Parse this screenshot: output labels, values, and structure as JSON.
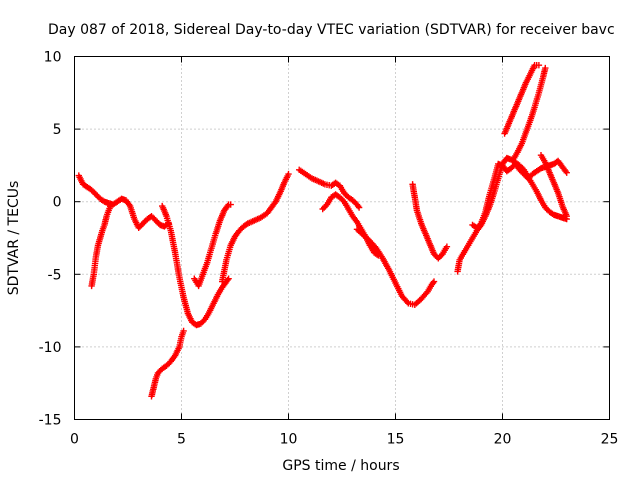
{
  "chart_data": {
    "type": "scatter",
    "title": "Day 087 of 2018, Sidereal Day-to-day VTEC variation (SDTVAR) for receiver bavc",
    "xlabel": "GPS time / hours",
    "ylabel": "SDTVAR / TECUs",
    "xlim": [
      0,
      25
    ],
    "ylim": [
      -15,
      10
    ],
    "x_ticks": [
      0,
      5,
      10,
      15,
      20,
      25
    ],
    "y_ticks": [
      -15,
      -10,
      -5,
      0,
      5,
      10
    ],
    "x_tick_labels": [
      "0",
      "5",
      "10",
      "15",
      "20",
      "25"
    ],
    "y_tick_labels": [
      "-15",
      "-10",
      "-5",
      "0",
      "5",
      "10"
    ],
    "grid": true,
    "marker": "+",
    "color": "#ff0000",
    "series": [
      {
        "name": "seg1",
        "points": [
          [
            0.2,
            1.8
          ],
          [
            0.4,
            1.2
          ],
          [
            0.6,
            1.0
          ],
          [
            0.8,
            0.8
          ],
          [
            1.0,
            0.5
          ],
          [
            1.2,
            0.2
          ],
          [
            1.4,
            0.0
          ],
          [
            1.6,
            -0.1
          ],
          [
            1.8,
            -0.2
          ],
          [
            2.0,
            0.0
          ],
          [
            2.2,
            0.2
          ],
          [
            2.4,
            0.1
          ],
          [
            2.6,
            -0.3
          ],
          [
            2.8,
            -1.2
          ],
          [
            3.0,
            -1.8
          ],
          [
            3.2,
            -1.5
          ],
          [
            3.4,
            -1.2
          ],
          [
            3.6,
            -1.0
          ],
          [
            3.8,
            -1.3
          ],
          [
            4.0,
            -1.6
          ],
          [
            4.2,
            -1.7
          ],
          [
            4.4,
            -1.5
          ]
        ]
      },
      {
        "name": "seg2",
        "points": [
          [
            0.8,
            -5.8
          ],
          [
            0.9,
            -5.0
          ],
          [
            1.0,
            -3.8
          ],
          [
            1.1,
            -3.0
          ],
          [
            1.2,
            -2.5
          ],
          [
            1.3,
            -2.0
          ],
          [
            1.4,
            -1.6
          ],
          [
            1.5,
            -1.0
          ],
          [
            1.6,
            -0.6
          ],
          [
            1.7,
            -0.2
          ]
        ]
      },
      {
        "name": "seg3",
        "points": [
          [
            4.1,
            -0.3
          ],
          [
            4.3,
            -1.0
          ],
          [
            4.5,
            -2.0
          ],
          [
            4.7,
            -3.5
          ],
          [
            4.9,
            -5.2
          ],
          [
            5.1,
            -6.6
          ],
          [
            5.3,
            -7.7
          ],
          [
            5.5,
            -8.3
          ],
          [
            5.7,
            -8.5
          ],
          [
            5.9,
            -8.4
          ],
          [
            6.1,
            -8.1
          ],
          [
            6.3,
            -7.6
          ],
          [
            6.5,
            -7.0
          ],
          [
            6.7,
            -6.4
          ],
          [
            6.9,
            -5.9
          ],
          [
            7.1,
            -5.5
          ],
          [
            7.2,
            -5.3
          ]
        ]
      },
      {
        "name": "seg4",
        "points": [
          [
            5.6,
            -5.3
          ],
          [
            5.8,
            -5.8
          ],
          [
            6.0,
            -5.0
          ],
          [
            6.2,
            -4.2
          ],
          [
            6.4,
            -3.2
          ],
          [
            6.6,
            -2.2
          ],
          [
            6.8,
            -1.3
          ],
          [
            7.0,
            -0.6
          ],
          [
            7.2,
            -0.2
          ],
          [
            7.3,
            -0.2
          ]
        ]
      },
      {
        "name": "seg5",
        "points": [
          [
            3.6,
            -13.4
          ],
          [
            3.7,
            -12.8
          ],
          [
            3.8,
            -12.2
          ],
          [
            3.9,
            -11.8
          ],
          [
            4.1,
            -11.5
          ],
          [
            4.3,
            -11.3
          ],
          [
            4.5,
            -11.0
          ],
          [
            4.7,
            -10.6
          ],
          [
            4.9,
            -10.0
          ],
          [
            5.0,
            -9.3
          ],
          [
            5.1,
            -8.9
          ]
        ]
      },
      {
        "name": "seg6",
        "points": [
          [
            6.9,
            -5.5
          ],
          [
            7.1,
            -4.0
          ],
          [
            7.3,
            -3.0
          ],
          [
            7.5,
            -2.4
          ],
          [
            7.7,
            -2.0
          ],
          [
            7.9,
            -1.7
          ],
          [
            8.1,
            -1.5
          ],
          [
            8.4,
            -1.3
          ],
          [
            8.7,
            -1.1
          ],
          [
            9.0,
            -0.8
          ],
          [
            9.2,
            -0.4
          ],
          [
            9.4,
            0.0
          ],
          [
            9.6,
            0.6
          ],
          [
            9.8,
            1.3
          ],
          [
            10.0,
            1.9
          ]
        ]
      },
      {
        "name": "seg7",
        "points": [
          [
            10.5,
            2.2
          ],
          [
            10.8,
            1.9
          ],
          [
            11.1,
            1.6
          ],
          [
            11.4,
            1.4
          ],
          [
            11.7,
            1.2
          ],
          [
            12.0,
            1.1
          ],
          [
            12.2,
            1.3
          ],
          [
            12.4,
            1.1
          ],
          [
            12.6,
            0.6
          ],
          [
            12.8,
            0.3
          ],
          [
            13.0,
            0.1
          ],
          [
            13.2,
            -0.2
          ],
          [
            13.3,
            -0.4
          ]
        ]
      },
      {
        "name": "seg8",
        "points": [
          [
            11.6,
            -0.5
          ],
          [
            11.8,
            -0.2
          ],
          [
            12.0,
            0.3
          ],
          [
            12.2,
            0.5
          ],
          [
            12.4,
            0.3
          ],
          [
            12.6,
            0.0
          ],
          [
            12.8,
            -0.5
          ],
          [
            13.0,
            -1.0
          ],
          [
            13.2,
            -1.4
          ],
          [
            13.4,
            -1.9
          ],
          [
            13.6,
            -2.4
          ],
          [
            13.8,
            -3.0
          ],
          [
            14.0,
            -3.5
          ],
          [
            14.2,
            -3.7
          ]
        ]
      },
      {
        "name": "seg9",
        "points": [
          [
            13.2,
            -1.9
          ],
          [
            13.5,
            -2.3
          ],
          [
            13.8,
            -2.7
          ],
          [
            14.1,
            -3.2
          ],
          [
            14.4,
            -3.9
          ],
          [
            14.7,
            -4.7
          ],
          [
            15.0,
            -5.6
          ],
          [
            15.3,
            -6.5
          ],
          [
            15.6,
            -7.0
          ],
          [
            15.9,
            -7.1
          ],
          [
            16.2,
            -6.7
          ],
          [
            16.5,
            -6.2
          ],
          [
            16.7,
            -5.7
          ],
          [
            16.8,
            -5.5
          ]
        ]
      },
      {
        "name": "seg10",
        "points": [
          [
            15.8,
            1.2
          ],
          [
            15.9,
            0.3
          ],
          [
            16.0,
            -0.6
          ],
          [
            16.2,
            -1.5
          ],
          [
            16.4,
            -2.2
          ],
          [
            16.6,
            -2.9
          ],
          [
            16.8,
            -3.6
          ],
          [
            17.0,
            -3.9
          ],
          [
            17.2,
            -3.6
          ],
          [
            17.4,
            -3.1
          ]
        ]
      },
      {
        "name": "seg11",
        "points": [
          [
            17.9,
            -4.8
          ],
          [
            18.0,
            -4.0
          ],
          [
            18.2,
            -3.5
          ],
          [
            18.4,
            -3.0
          ],
          [
            18.6,
            -2.5
          ],
          [
            18.8,
            -2.0
          ],
          [
            19.0,
            -1.6
          ],
          [
            19.2,
            -1.0
          ],
          [
            19.4,
            -0.3
          ],
          [
            19.6,
            0.6
          ],
          [
            19.8,
            1.6
          ],
          [
            20.0,
            2.6
          ],
          [
            20.2,
            3.0
          ],
          [
            20.4,
            2.9
          ],
          [
            20.6,
            2.7
          ],
          [
            20.8,
            2.5
          ],
          [
            21.0,
            2.2
          ],
          [
            21.2,
            1.7
          ],
          [
            21.4,
            1.2
          ],
          [
            21.6,
            0.7
          ],
          [
            21.8,
            0.1
          ],
          [
            22.0,
            -0.4
          ],
          [
            22.2,
            -0.7
          ],
          [
            22.4,
            -0.9
          ],
          [
            22.6,
            -1.0
          ],
          [
            22.8,
            -1.1
          ],
          [
            23.0,
            -1.2
          ]
        ]
      },
      {
        "name": "seg12",
        "points": [
          [
            18.6,
            -1.6
          ],
          [
            18.8,
            -1.8
          ],
          [
            19.0,
            -1.5
          ],
          [
            19.2,
            -0.7
          ],
          [
            19.4,
            0.5
          ],
          [
            19.6,
            1.5
          ],
          [
            19.8,
            2.6
          ],
          [
            20.0,
            2.5
          ],
          [
            20.2,
            2.1
          ],
          [
            20.4,
            2.3
          ],
          [
            20.6,
            2.6
          ],
          [
            20.8,
            2.2
          ],
          [
            21.0,
            1.9
          ],
          [
            21.2,
            1.6
          ],
          [
            21.4,
            1.9
          ],
          [
            21.6,
            2.1
          ],
          [
            21.8,
            2.3
          ],
          [
            22.0,
            2.4
          ],
          [
            22.2,
            2.5
          ],
          [
            22.4,
            2.6
          ],
          [
            22.6,
            2.8
          ],
          [
            22.8,
            2.4
          ],
          [
            23.0,
            2.0
          ]
        ]
      },
      {
        "name": "seg13",
        "points": [
          [
            20.1,
            4.7
          ],
          [
            20.3,
            5.4
          ],
          [
            20.5,
            6.1
          ],
          [
            20.7,
            6.8
          ],
          [
            20.9,
            7.5
          ],
          [
            21.1,
            8.2
          ],
          [
            21.3,
            8.8
          ],
          [
            21.5,
            9.4
          ],
          [
            21.7,
            9.4
          ]
        ]
      },
      {
        "name": "seg14",
        "points": [
          [
            20.5,
            2.9
          ],
          [
            20.7,
            3.4
          ],
          [
            20.9,
            4.0
          ],
          [
            21.1,
            4.8
          ],
          [
            21.3,
            5.6
          ],
          [
            21.5,
            6.5
          ],
          [
            21.7,
            7.5
          ],
          [
            21.9,
            8.6
          ],
          [
            22.0,
            9.2
          ]
        ]
      },
      {
        "name": "seg15",
        "points": [
          [
            21.8,
            3.2
          ],
          [
            22.0,
            2.7
          ],
          [
            22.2,
            2.0
          ],
          [
            22.4,
            1.3
          ],
          [
            22.6,
            0.6
          ],
          [
            22.8,
            -0.3
          ],
          [
            23.0,
            -1.0
          ]
        ]
      }
    ]
  }
}
